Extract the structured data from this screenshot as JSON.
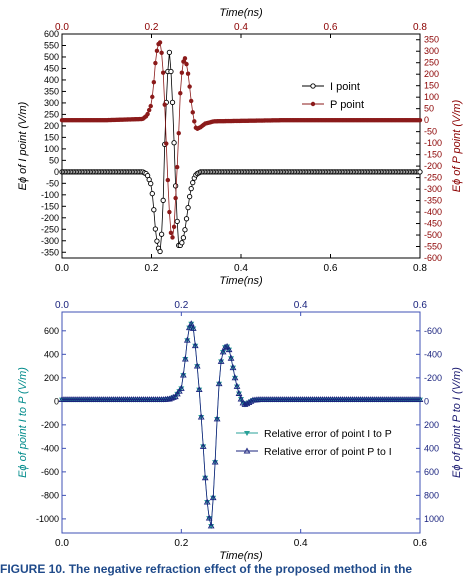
{
  "chart_data": [
    {
      "type": "scatter",
      "xlabel_top": "Time(ns)",
      "xlabel_bottom": "Time(ns)",
      "ylabel_left": "Eϕ of I point (V/m)",
      "ylabel_right": "Eϕ of P point (V/m)",
      "xlim": [
        0.0,
        0.8
      ],
      "ylim_left": [
        -375,
        600
      ],
      "ylim_right": [
        -600,
        375
      ],
      "xticks": [
        "0.0",
        "0.2",
        "0.4",
        "0.6",
        "0.8"
      ],
      "yticks_left": [
        "600",
        "550",
        "500",
        "450",
        "400",
        "350",
        "300",
        "250",
        "200",
        "150",
        "100",
        "50",
        "0",
        "-50",
        "-100",
        "-150",
        "-200",
        "-250",
        "-300",
        "-350"
      ],
      "yticks_right": [
        "350",
        "300",
        "250",
        "200",
        "150",
        "100",
        "50",
        "0",
        "-50",
        "-100",
        "-150",
        "-200",
        "-250",
        "-300",
        "-350",
        "-400",
        "-450",
        "-500",
        "-550",
        "-600"
      ],
      "legend_position": "right",
      "colors": {
        "left_axis": "#000000",
        "right_axis": "#8b0000",
        "series_I": "#000000",
        "series_P": "#8b1a1a"
      },
      "series": [
        {
          "name": "I point",
          "axis": "left",
          "marker": "open-circle",
          "x": [
            0.0,
            0.1,
            0.18,
            0.19,
            0.2,
            0.205,
            0.21,
            0.215,
            0.22,
            0.225,
            0.23,
            0.235,
            0.24,
            0.245,
            0.25,
            0.255,
            0.26,
            0.265,
            0.27,
            0.275,
            0.28,
            0.285,
            0.29,
            0.295,
            0.3,
            0.31,
            0.32,
            0.34,
            0.5,
            0.8
          ],
          "y": [
            0,
            0,
            0,
            -10,
            -60,
            -160,
            -280,
            -330,
            -350,
            -200,
            150,
            400,
            520,
            400,
            150,
            -120,
            -320,
            -320,
            -300,
            -250,
            -180,
            -110,
            -60,
            -30,
            -10,
            0,
            0,
            0,
            0,
            0
          ]
        },
        {
          "name": "P point",
          "axis": "right",
          "marker": "filled-circle",
          "x": [
            0.0,
            0.1,
            0.18,
            0.19,
            0.2,
            0.205,
            0.21,
            0.215,
            0.22,
            0.225,
            0.23,
            0.235,
            0.24,
            0.245,
            0.25,
            0.255,
            0.26,
            0.265,
            0.27,
            0.275,
            0.28,
            0.285,
            0.29,
            0.295,
            0.3,
            0.31,
            0.32,
            0.34,
            0.5,
            0.8
          ],
          "y": [
            0,
            0,
            5,
            20,
            70,
            160,
            280,
            330,
            340,
            250,
            50,
            -200,
            -400,
            -530,
            -480,
            -300,
            -100,
            150,
            250,
            270,
            230,
            150,
            60,
            0,
            -40,
            -30,
            -15,
            -5,
            0,
            0
          ]
        }
      ]
    },
    {
      "type": "scatter",
      "xlabel_bottom": "Time(ns)",
      "ylabel_left": "Eϕ of point I to P (V/m)",
      "ylabel_right": "Eϕ of point P to I (V/m)",
      "xlim": [
        0.0,
        0.6
      ],
      "ylim_left": [
        -1120,
        760
      ],
      "ylim_right": [
        1120,
        -760
      ],
      "xticks": [
        "0.0",
        "0.2",
        "0.4",
        "0.6"
      ],
      "yticks_left": [
        "600",
        "400",
        "200",
        "0",
        "-200",
        "-400",
        "-600",
        "-800",
        "-1000"
      ],
      "yticks_right": [
        "-600",
        "-400",
        "-200",
        "0",
        "200",
        "400",
        "600",
        "800",
        "1000"
      ],
      "legend_position": "lower-right",
      "colors": {
        "left_axis": "#008b8b",
        "right_axis": "#191970",
        "series_I_to_P": "#2aa198",
        "series_P_to_I": "#1a237e",
        "frame": "#3f51b5"
      },
      "series": [
        {
          "name": "Relative error of point I to P",
          "axis": "left",
          "marker": "filled-triangle-down",
          "x": [
            0.0,
            0.1,
            0.17,
            0.18,
            0.19,
            0.2,
            0.205,
            0.21,
            0.215,
            0.22,
            0.225,
            0.23,
            0.235,
            0.24,
            0.245,
            0.25,
            0.255,
            0.26,
            0.265,
            0.27,
            0.275,
            0.28,
            0.285,
            0.29,
            0.295,
            0.3,
            0.305,
            0.31,
            0.32,
            0.33,
            0.4,
            0.6
          ],
          "y": [
            15,
            15,
            15,
            20,
            40,
            110,
            280,
            520,
            680,
            620,
            400,
            100,
            -250,
            -650,
            -960,
            -1060,
            -700,
            -150,
            300,
            420,
            480,
            440,
            330,
            200,
            90,
            20,
            -30,
            -20,
            10,
            15,
            15,
            15
          ]
        },
        {
          "name": "Relative error of point P to I",
          "axis": "right",
          "marker": "open-triangle-up",
          "x": [
            0.0,
            0.1,
            0.17,
            0.18,
            0.19,
            0.2,
            0.205,
            0.21,
            0.215,
            0.22,
            0.225,
            0.23,
            0.235,
            0.24,
            0.245,
            0.25,
            0.255,
            0.26,
            0.265,
            0.27,
            0.275,
            0.28,
            0.285,
            0.29,
            0.295,
            0.3,
            0.305,
            0.31,
            0.32,
            0.33,
            0.4,
            0.6
          ],
          "y": [
            -15,
            -15,
            -15,
            -20,
            -40,
            -110,
            -280,
            -520,
            -680,
            -620,
            -400,
            -100,
            250,
            650,
            960,
            1060,
            700,
            150,
            -300,
            -420,
            -480,
            -440,
            -330,
            -200,
            -90,
            -20,
            30,
            20,
            -10,
            -15,
            -15,
            -15
          ]
        }
      ]
    }
  ],
  "caption": {
    "label": "FIGURE 10.",
    "text": "The negative refraction effect of the proposed method in the"
  }
}
